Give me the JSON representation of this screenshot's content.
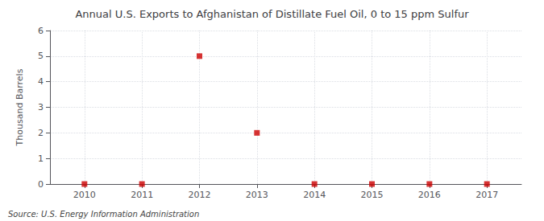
{
  "chart_data": {
    "type": "scatter",
    "title": "Annual U.S. Exports to Afghanistan of Distillate Fuel Oil, 0 to 15 ppm Sulfur",
    "ylabel": "Thousand Barrels",
    "annotations": [
      "Source: U.S. Energy Information Administration"
    ],
    "x": [
      2010,
      2011,
      2012,
      2013,
      2014,
      2015,
      2016,
      2017
    ],
    "values": [
      0,
      0,
      5,
      2,
      0,
      0,
      0,
      0
    ],
    "color": "#CC0000",
    "marker": "square",
    "xlim": [
      2009.4,
      2017.6
    ],
    "xticks": [
      2010,
      2011,
      2012,
      2013,
      2014,
      2015,
      2016,
      2017
    ],
    "ylim": [
      0,
      6
    ],
    "yticks": [
      0,
      1,
      2,
      3,
      4,
      5,
      6
    ],
    "grid": true
  }
}
